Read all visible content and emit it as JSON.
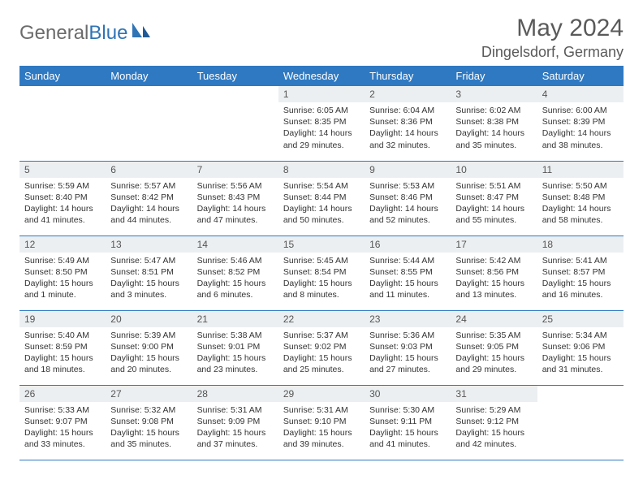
{
  "logo": {
    "text1": "General",
    "text2": "Blue"
  },
  "title": "May 2024",
  "location": "Dingelsdorf, Germany",
  "colors": {
    "header_bg": "#2f79c2",
    "header_text": "#ffffff",
    "daynum_bg": "#eceff1",
    "row_border": "#2f79c2",
    "logo_gray": "#6b6b6b",
    "logo_blue": "#2f74b5"
  },
  "weekdays": [
    "Sunday",
    "Monday",
    "Tuesday",
    "Wednesday",
    "Thursday",
    "Friday",
    "Saturday"
  ],
  "leading_blanks": 3,
  "days": [
    {
      "n": "1",
      "sunrise": "6:05 AM",
      "sunset": "8:35 PM",
      "daylight": "14 hours and 29 minutes."
    },
    {
      "n": "2",
      "sunrise": "6:04 AM",
      "sunset": "8:36 PM",
      "daylight": "14 hours and 32 minutes."
    },
    {
      "n": "3",
      "sunrise": "6:02 AM",
      "sunset": "8:38 PM",
      "daylight": "14 hours and 35 minutes."
    },
    {
      "n": "4",
      "sunrise": "6:00 AM",
      "sunset": "8:39 PM",
      "daylight": "14 hours and 38 minutes."
    },
    {
      "n": "5",
      "sunrise": "5:59 AM",
      "sunset": "8:40 PM",
      "daylight": "14 hours and 41 minutes."
    },
    {
      "n": "6",
      "sunrise": "5:57 AM",
      "sunset": "8:42 PM",
      "daylight": "14 hours and 44 minutes."
    },
    {
      "n": "7",
      "sunrise": "5:56 AM",
      "sunset": "8:43 PM",
      "daylight": "14 hours and 47 minutes."
    },
    {
      "n": "8",
      "sunrise": "5:54 AM",
      "sunset": "8:44 PM",
      "daylight": "14 hours and 50 minutes."
    },
    {
      "n": "9",
      "sunrise": "5:53 AM",
      "sunset": "8:46 PM",
      "daylight": "14 hours and 52 minutes."
    },
    {
      "n": "10",
      "sunrise": "5:51 AM",
      "sunset": "8:47 PM",
      "daylight": "14 hours and 55 minutes."
    },
    {
      "n": "11",
      "sunrise": "5:50 AM",
      "sunset": "8:48 PM",
      "daylight": "14 hours and 58 minutes."
    },
    {
      "n": "12",
      "sunrise": "5:49 AM",
      "sunset": "8:50 PM",
      "daylight": "15 hours and 1 minute."
    },
    {
      "n": "13",
      "sunrise": "5:47 AM",
      "sunset": "8:51 PM",
      "daylight": "15 hours and 3 minutes."
    },
    {
      "n": "14",
      "sunrise": "5:46 AM",
      "sunset": "8:52 PM",
      "daylight": "15 hours and 6 minutes."
    },
    {
      "n": "15",
      "sunrise": "5:45 AM",
      "sunset": "8:54 PM",
      "daylight": "15 hours and 8 minutes."
    },
    {
      "n": "16",
      "sunrise": "5:44 AM",
      "sunset": "8:55 PM",
      "daylight": "15 hours and 11 minutes."
    },
    {
      "n": "17",
      "sunrise": "5:42 AM",
      "sunset": "8:56 PM",
      "daylight": "15 hours and 13 minutes."
    },
    {
      "n": "18",
      "sunrise": "5:41 AM",
      "sunset": "8:57 PM",
      "daylight": "15 hours and 16 minutes."
    },
    {
      "n": "19",
      "sunrise": "5:40 AM",
      "sunset": "8:59 PM",
      "daylight": "15 hours and 18 minutes."
    },
    {
      "n": "20",
      "sunrise": "5:39 AM",
      "sunset": "9:00 PM",
      "daylight": "15 hours and 20 minutes."
    },
    {
      "n": "21",
      "sunrise": "5:38 AM",
      "sunset": "9:01 PM",
      "daylight": "15 hours and 23 minutes."
    },
    {
      "n": "22",
      "sunrise": "5:37 AM",
      "sunset": "9:02 PM",
      "daylight": "15 hours and 25 minutes."
    },
    {
      "n": "23",
      "sunrise": "5:36 AM",
      "sunset": "9:03 PM",
      "daylight": "15 hours and 27 minutes."
    },
    {
      "n": "24",
      "sunrise": "5:35 AM",
      "sunset": "9:05 PM",
      "daylight": "15 hours and 29 minutes."
    },
    {
      "n": "25",
      "sunrise": "5:34 AM",
      "sunset": "9:06 PM",
      "daylight": "15 hours and 31 minutes."
    },
    {
      "n": "26",
      "sunrise": "5:33 AM",
      "sunset": "9:07 PM",
      "daylight": "15 hours and 33 minutes."
    },
    {
      "n": "27",
      "sunrise": "5:32 AM",
      "sunset": "9:08 PM",
      "daylight": "15 hours and 35 minutes."
    },
    {
      "n": "28",
      "sunrise": "5:31 AM",
      "sunset": "9:09 PM",
      "daylight": "15 hours and 37 minutes."
    },
    {
      "n": "29",
      "sunrise": "5:31 AM",
      "sunset": "9:10 PM",
      "daylight": "15 hours and 39 minutes."
    },
    {
      "n": "30",
      "sunrise": "5:30 AM",
      "sunset": "9:11 PM",
      "daylight": "15 hours and 41 minutes."
    },
    {
      "n": "31",
      "sunrise": "5:29 AM",
      "sunset": "9:12 PM",
      "daylight": "15 hours and 42 minutes."
    }
  ],
  "labels": {
    "sunrise": "Sunrise:",
    "sunset": "Sunset:",
    "daylight": "Daylight:"
  }
}
